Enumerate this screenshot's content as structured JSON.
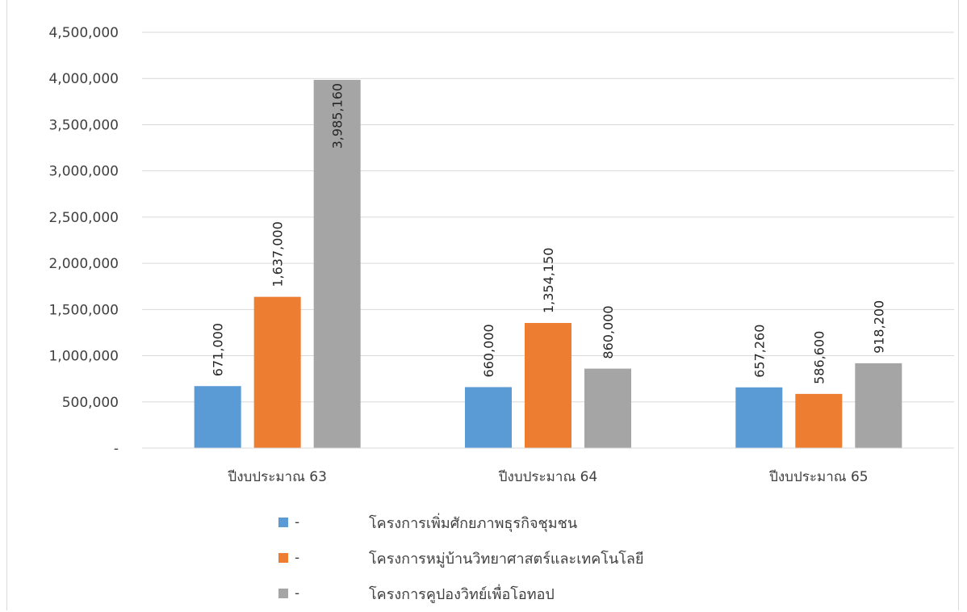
{
  "chart_data": {
    "type": "bar",
    "categories": [
      "ปีงบประมาณ 63",
      "ปีงบประมาณ 64",
      "ปีงบประมาณ 65"
    ],
    "series": [
      {
        "name": "โครงการเพิ่มศักยภาพธุรกิจชุมชน",
        "color": "#5b9bd5",
        "values": [
          671000,
          660000,
          657260
        ],
        "labels": [
          "671,000",
          "660,000",
          "657,260"
        ]
      },
      {
        "name": "โครงการหมู่บ้านวิทยาศาสตร์และเทคโนโลยี",
        "color": "#ed7d31",
        "values": [
          1637000,
          1354150,
          586600
        ],
        "labels": [
          "1,637,000",
          "1,354,150",
          "586,600"
        ]
      },
      {
        "name": "โครงการคูปองวิทย์เพื่อโอทอป",
        "color": "#a5a5a5",
        "values": [
          3985160,
          860000,
          918200
        ],
        "labels": [
          "3,985,160",
          "860,000",
          "918,200"
        ]
      }
    ],
    "ylim": [
      0,
      4500000
    ],
    "yticks": [
      "-",
      "500,000",
      "1,000,000",
      "1,500,000",
      "2,000,000",
      "2,500,000",
      "3,000,000",
      "3,500,000",
      "4,000,000",
      "4,500,000"
    ],
    "grid": true,
    "legend_position": "bottom",
    "legend_prefix": "-",
    "data_label_orientation": "vertical"
  }
}
